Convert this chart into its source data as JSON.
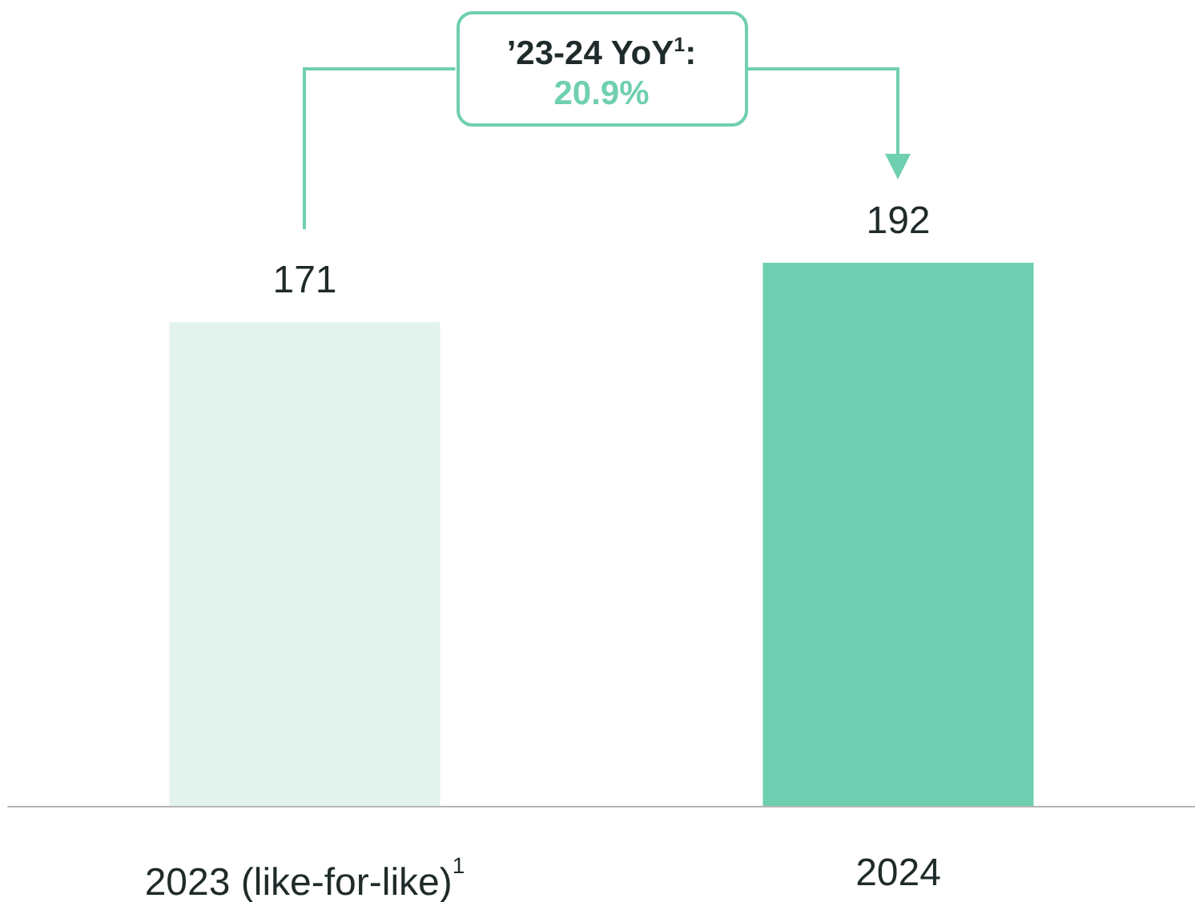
{
  "chart_data": {
    "type": "bar",
    "categories": [
      "2023 (like-for-like)$^{1}$",
      "2024"
    ],
    "values": [
      171,
      192
    ],
    "colors": [
      "#e2f3ee",
      "#6fcfb1"
    ],
    "data_labels": true,
    "annotations": [
      "’23-24 YoY$^{1}$:",
      "20.9%"
    ]
  }
}
